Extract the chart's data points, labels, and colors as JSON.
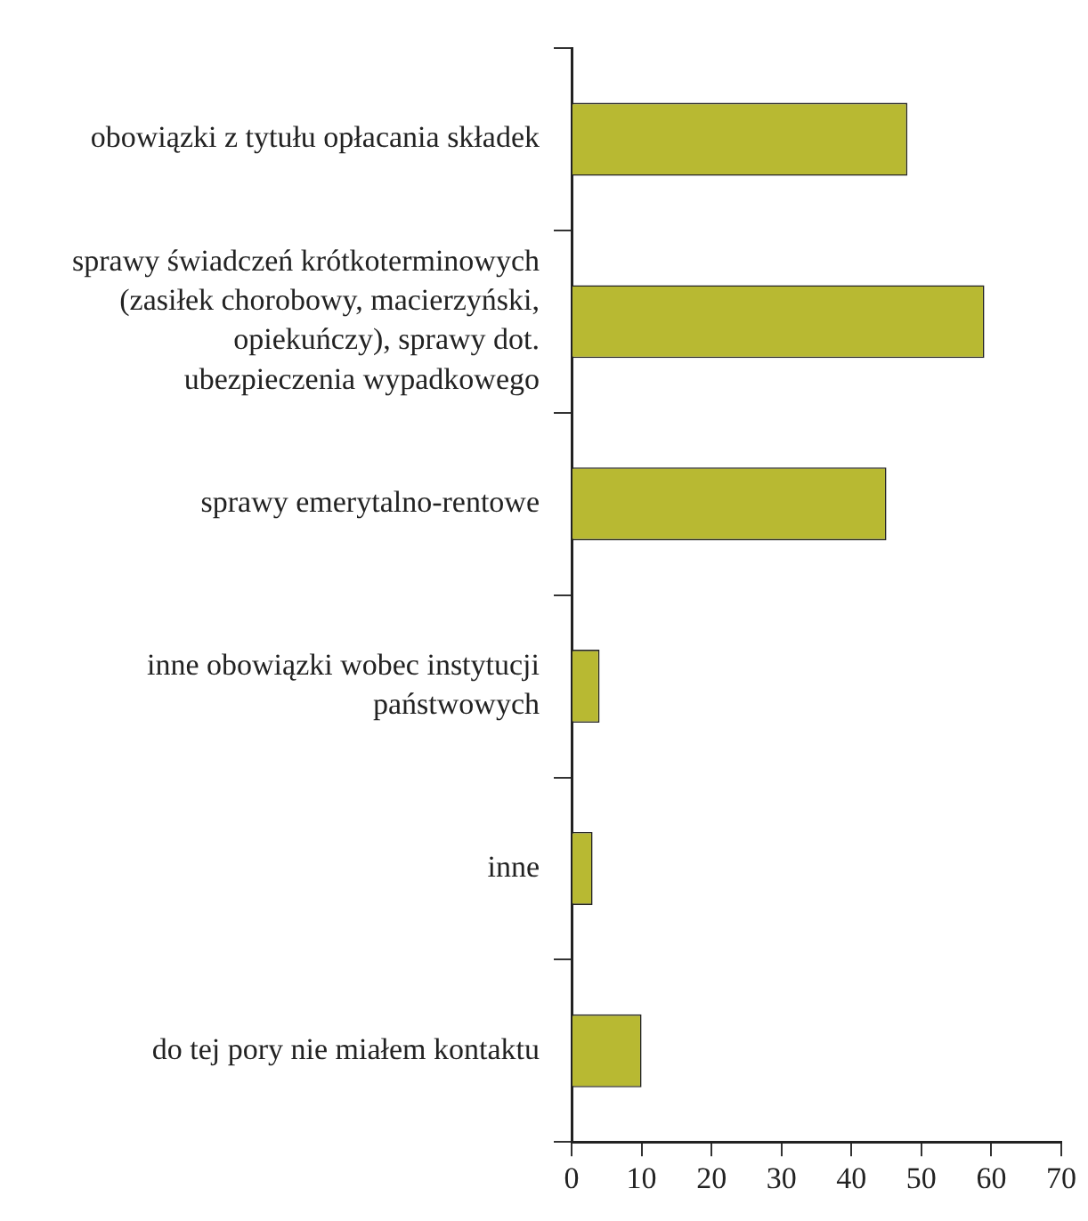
{
  "chart_data": {
    "type": "bar",
    "orientation": "horizontal",
    "categories": [
      "obowiązki z tytułu opłacania składek",
      "sprawy świadczeń krótkoterminowych (zasiłek chorobowy, macierzyński, opiekuńczy), sprawy dot. ubezpieczenia wypadkowego",
      "sprawy emerytalno-rentowe",
      "inne obowiązki wobec instytucji państwowych",
      "inne",
      "do tej pory nie miałem kontaktu"
    ],
    "values": [
      48,
      59,
      45,
      4,
      3,
      10
    ],
    "color": "#b8b932",
    "xlim": [
      0,
      70
    ],
    "xticks": [
      0,
      10,
      20,
      30,
      40,
      50,
      60,
      70
    ],
    "grid": false,
    "legend": false
  }
}
